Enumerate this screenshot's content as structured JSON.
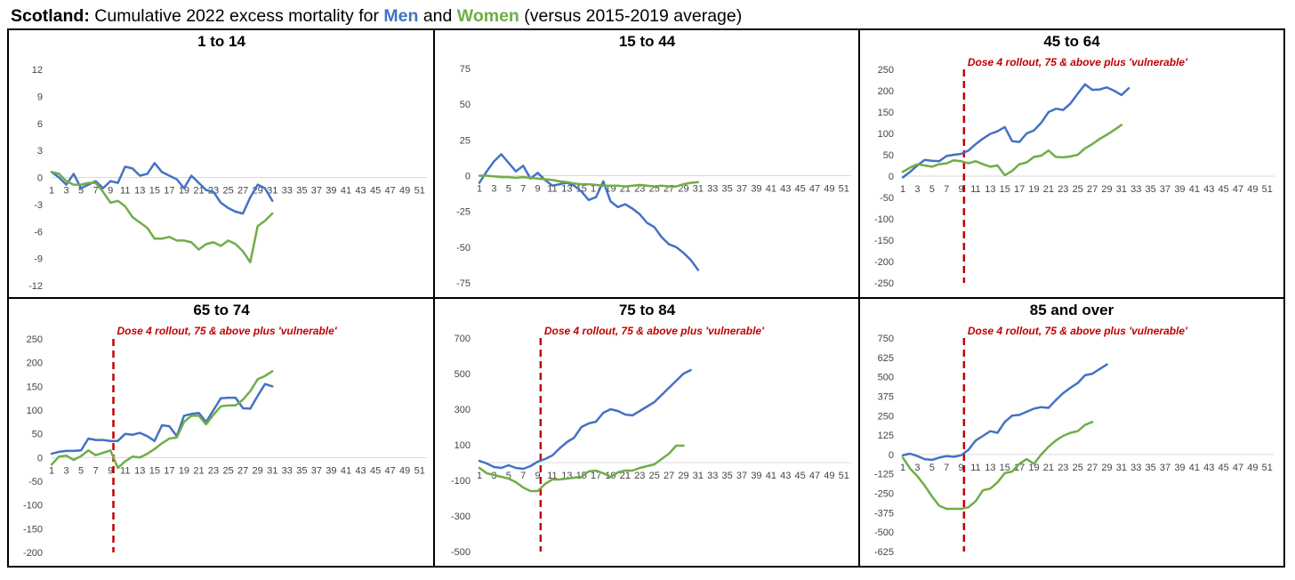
{
  "header": {
    "bold": "Scotland:",
    "part1": " Cumulative 2022 excess mortality for ",
    "men": "Men",
    "part2": " and ",
    "women": "Women",
    "part3": " (versus 2015-2019 average)"
  },
  "colors": {
    "men": "#4472c4",
    "women": "#70ad47",
    "annotation": "#c00000",
    "axis": "#d9d9d9"
  },
  "chart_data": [
    {
      "type": "line",
      "title": "1 to 14",
      "x_ticks": [
        1,
        3,
        5,
        7,
        9,
        11,
        13,
        15,
        17,
        19,
        21,
        23,
        25,
        27,
        29,
        31,
        33,
        35,
        37,
        39,
        41,
        43,
        45,
        47,
        49,
        51
      ],
      "x_range": [
        1,
        52
      ],
      "y_ticks": [
        12,
        9,
        6,
        3,
        0,
        -3,
        -6,
        -9,
        -12
      ],
      "ylim": [
        -12,
        12
      ],
      "series": [
        {
          "name": "Men",
          "values": [
            0.6,
            0,
            -0.8,
            0.4,
            -1.2,
            -0.8,
            -0.4,
            -1.2,
            -0.4,
            -0.6,
            1.2,
            1.0,
            0.2,
            0.4,
            1.6,
            0.6,
            0.2,
            -0.2,
            -1.2,
            0.2,
            -0.6,
            -1.4,
            -1.6,
            -2.8,
            -3.4,
            -3.8,
            -4.0,
            -2.2,
            -0.8,
            -1.2,
            -2.6
          ]
        },
        {
          "name": "Women",
          "values": [
            0.6,
            0.4,
            -0.4,
            -0.8,
            -0.8,
            -0.6,
            -0.6,
            -1.6,
            -2.8,
            -2.6,
            -3.2,
            -4.4,
            -5.0,
            -5.6,
            -6.8,
            -6.8,
            -6.6,
            -7.0,
            -7.0,
            -7.2,
            -8.0,
            -7.4,
            -7.2,
            -7.6,
            -7.0,
            -7.4,
            -8.2,
            -9.4,
            -5.4,
            -4.8,
            -4.0
          ]
        }
      ]
    },
    {
      "type": "line",
      "title": "15 to 44",
      "x_ticks": [
        1,
        3,
        5,
        7,
        9,
        11,
        13,
        15,
        17,
        19,
        21,
        23,
        25,
        27,
        29,
        31,
        33,
        35,
        37,
        39,
        41,
        43,
        45,
        47,
        49,
        51
      ],
      "x_range": [
        1,
        52
      ],
      "y_ticks": [
        75,
        50,
        25,
        0,
        -25,
        -50,
        -75
      ],
      "ylim": [
        -75,
        75
      ],
      "series": [
        {
          "name": "Men",
          "values": [
            -5,
            3,
            10,
            15,
            9,
            3,
            7,
            -2,
            2,
            -3,
            -7,
            -6,
            -5,
            -7,
            -11,
            -17,
            -15,
            -4,
            -18,
            -22,
            -20,
            -23,
            -27,
            -33,
            -36,
            -43,
            -48,
            -50,
            -54,
            -59,
            -66
          ]
        },
        {
          "name": "Women",
          "values": [
            0,
            0,
            -0.5,
            -1,
            -1,
            -1.5,
            -1,
            -1.5,
            -2,
            -2.5,
            -3,
            -4,
            -4.5,
            -5.5,
            -6,
            -6,
            -6.5,
            -7,
            -7,
            -7,
            -7.5,
            -7,
            -6.5,
            -7,
            -7.5,
            -7,
            -7.5,
            -7.5,
            -6,
            -5,
            -4.5
          ]
        }
      ]
    },
    {
      "type": "line",
      "title": "45 to 64",
      "annotation": "Dose 4 rollout, 75 & above plus 'vulnerable'",
      "annotation_week": 9.4,
      "x_ticks": [
        1,
        3,
        5,
        7,
        9,
        11,
        13,
        15,
        17,
        19,
        21,
        23,
        25,
        27,
        29,
        31,
        33,
        35,
        37,
        39,
        41,
        43,
        45,
        47,
        49,
        51
      ],
      "x_range": [
        1,
        52
      ],
      "y_ticks": [
        250,
        200,
        150,
        100,
        50,
        0,
        -50,
        -100,
        -150,
        -200,
        -250
      ],
      "ylim": [
        -250,
        250
      ],
      "series": [
        {
          "name": "Men",
          "values": [
            -3,
            10,
            25,
            38,
            36,
            35,
            47,
            50,
            52,
            60,
            75,
            88,
            99,
            105,
            115,
            82,
            80,
            100,
            107,
            125,
            150,
            158,
            155,
            170,
            193,
            215,
            202,
            203,
            208,
            200,
            190,
            206
          ]
        },
        {
          "name": "Women",
          "values": [
            10,
            20,
            28,
            25,
            22,
            28,
            30,
            37,
            35,
            30,
            35,
            28,
            22,
            25,
            2,
            12,
            28,
            32,
            45,
            48,
            60,
            45,
            44,
            46,
            50,
            65,
            75,
            87,
            97,
            108,
            120
          ]
        }
      ]
    },
    {
      "type": "line",
      "title": "65 to 74",
      "annotation": "Dose 4 rollout, 75 & above plus 'vulnerable'",
      "annotation_week": 9.4,
      "x_ticks": [
        1,
        3,
        5,
        7,
        9,
        11,
        13,
        15,
        17,
        19,
        21,
        23,
        25,
        27,
        29,
        31,
        33,
        35,
        37,
        39,
        41,
        43,
        45,
        47,
        49,
        51
      ],
      "x_range": [
        1,
        52
      ],
      "y_ticks": [
        250,
        200,
        150,
        100,
        50,
        0,
        -50,
        -100,
        -150,
        -200
      ],
      "ylim": [
        -200,
        250
      ],
      "series": [
        {
          "name": "Men",
          "values": [
            8,
            12,
            14,
            14,
            15,
            40,
            37,
            37,
            35,
            35,
            50,
            48,
            52,
            45,
            35,
            68,
            66,
            45,
            88,
            92,
            94,
            75,
            100,
            125,
            126,
            126,
            104,
            103,
            130,
            155,
            150
          ]
        },
        {
          "name": "Women",
          "values": [
            -15,
            2,
            4,
            -5,
            3,
            15,
            5,
            10,
            15,
            -22,
            -8,
            2,
            0,
            8,
            18,
            30,
            40,
            42,
            75,
            88,
            88,
            70,
            90,
            108,
            110,
            110,
            122,
            140,
            165,
            172,
            182
          ]
        }
      ]
    },
    {
      "type": "line",
      "title": "75 to 84",
      "annotation": "Dose 4 rollout, 75 & above plus 'vulnerable'",
      "annotation_week": 9.4,
      "x_ticks": [
        1,
        3,
        5,
        7,
        9,
        11,
        13,
        15,
        17,
        19,
        21,
        23,
        25,
        27,
        29,
        31,
        33,
        35,
        37,
        39,
        41,
        43,
        45,
        47,
        49,
        51
      ],
      "x_range": [
        1,
        52
      ],
      "y_ticks": [
        700,
        500,
        300,
        100,
        -100,
        -300,
        -500
      ],
      "ylim": [
        -500,
        700
      ],
      "series": [
        {
          "name": "Men",
          "values": [
            10,
            -5,
            -25,
            -30,
            -15,
            -30,
            -35,
            -20,
            5,
            20,
            40,
            80,
            115,
            140,
            200,
            220,
            230,
            280,
            300,
            290,
            270,
            265,
            290,
            315,
            340,
            380,
            420,
            460,
            500,
            520
          ]
        },
        {
          "name": "Women",
          "values": [
            -30,
            -60,
            -70,
            -80,
            -90,
            -110,
            -140,
            -160,
            -160,
            -120,
            -95,
            -95,
            -90,
            -85,
            -80,
            -50,
            -45,
            -60,
            -80,
            -55,
            -45,
            -45,
            -30,
            -20,
            -10,
            20,
            50,
            95,
            95
          ]
        }
      ]
    },
    {
      "type": "line",
      "title": "85 and over",
      "annotation": "Dose 4 rollout, 75 & above plus 'vulnerable'",
      "annotation_week": 9.4,
      "x_ticks": [
        1,
        3,
        5,
        7,
        9,
        11,
        13,
        15,
        17,
        19,
        21,
        23,
        25,
        27,
        29,
        31,
        33,
        35,
        37,
        39,
        41,
        43,
        45,
        47,
        49,
        51
      ],
      "x_range": [
        1,
        52
      ],
      "y_ticks": [
        750,
        625,
        500,
        375,
        250,
        125,
        0,
        -125,
        -250,
        -375,
        -500,
        -625
      ],
      "ylim": [
        -625,
        750
      ],
      "series": [
        {
          "name": "Men",
          "values": [
            -5,
            5,
            -10,
            -30,
            -35,
            -20,
            -10,
            -15,
            -5,
            30,
            90,
            120,
            150,
            140,
            210,
            250,
            255,
            275,
            295,
            305,
            300,
            350,
            395,
            430,
            460,
            510,
            520,
            550,
            580
          ]
        },
        {
          "name": "Women",
          "values": [
            -20,
            -90,
            -140,
            -200,
            -270,
            -330,
            -350,
            -350,
            -350,
            -340,
            -300,
            -230,
            -220,
            -180,
            -120,
            -110,
            -60,
            -30,
            -60,
            0,
            50,
            90,
            120,
            140,
            150,
            190,
            210
          ]
        }
      ]
    }
  ]
}
